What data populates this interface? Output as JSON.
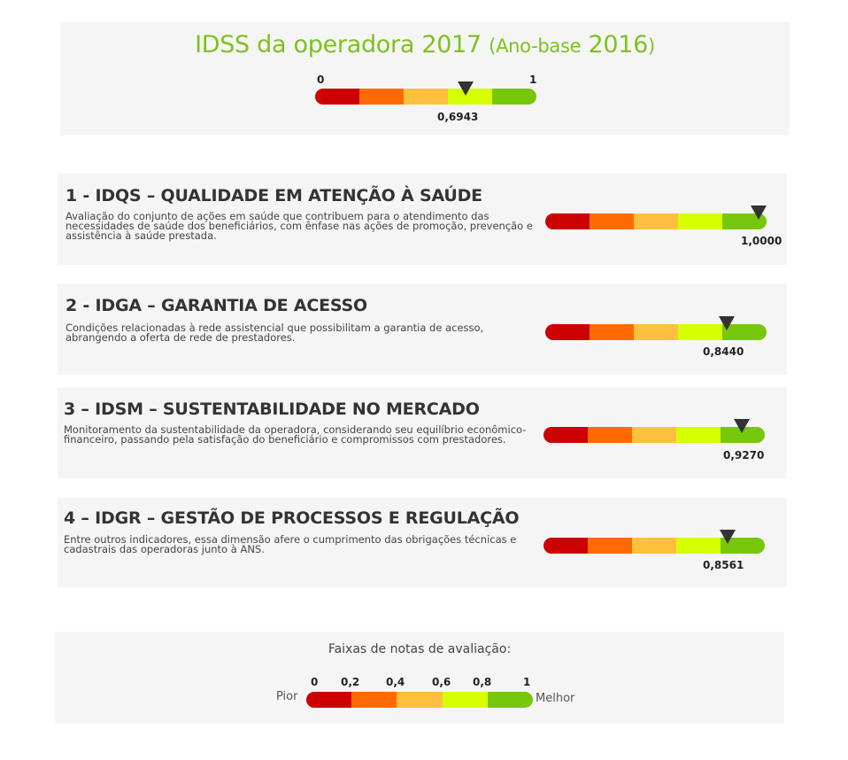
{
  "header": {
    "title": "IDSS da operadora 2017",
    "subtitle_open": "(",
    "subtitle_small": "Ano-base",
    "subtitle_year": "2016",
    "subtitle_close": ")",
    "scale_min": "0",
    "scale_max": "1",
    "value": 0.6943,
    "value_label": "0,6943"
  },
  "gauge_colors": [
    "#cc0000",
    "#ff6a00",
    "#ffc040",
    "#d6ff00",
    "#77c70c"
  ],
  "marker_color": "#333333",
  "accent_color": "#7dc21e",
  "sections": [
    {
      "title": "1 - IDQS – QUALIDADE EM ATENÇÃO À SAÚDE",
      "description": "Avaliação do conjunto de ações em saúde que contribuem para o atendimento das necessidades de saúde dos beneficiários, com ênfase nas ações de promoção, prevenção e assistência à saúde prestada.",
      "value": 1.0,
      "value_label": "1,0000"
    },
    {
      "title": "2 - IDGA – GARANTIA DE ACESSO",
      "description": "Condições relacionadas à rede assistencial que possibilitam a garantia de acesso, abrangendo a oferta de rede de prestadores.",
      "value": 0.844,
      "value_label": "0,8440"
    },
    {
      "title": "3 – IDSM – SUSTENTABILIDADE NO MERCADO",
      "description": "Monitoramento da sustentabilidade da operadora, considerando seu equilíbrio econômico-financeiro, passando pela satisfação do beneficiário e compromissos com prestadores.",
      "value": 0.927,
      "value_label": "0,9270"
    },
    {
      "title": "4 – IDGR – GESTÃO DE PROCESSOS E REGULAÇÃO",
      "description": "Entre outros indicadores, essa dimensão afere o cumprimento das obrigações técnicas e cadastrais das operadoras junto à ANS.",
      "value": 0.8561,
      "value_label": "0,8561"
    }
  ],
  "legend": {
    "title": "Faixas de notas de avaliação:",
    "ticks": [
      "0",
      "0,2",
      "0,4",
      "0,6",
      "0,8",
      "1"
    ],
    "left_label": "Pior",
    "right_label": "Melhor"
  }
}
